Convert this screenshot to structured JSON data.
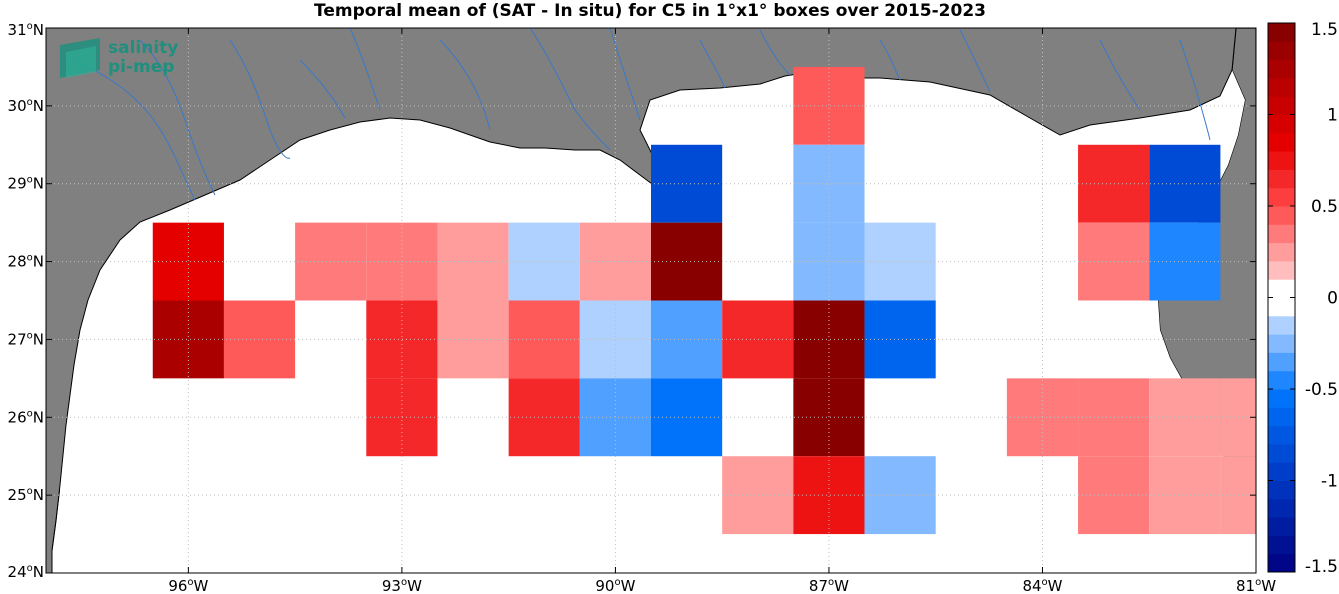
{
  "title": "Temporal mean of (SAT - In situ) for C5 in 1°x1° boxes over 2015-2023",
  "logo": {
    "line1": "salinity",
    "line2": "pi-mep"
  },
  "map": {
    "lon_range": [
      -98,
      -81
    ],
    "lat_range": [
      24,
      31
    ],
    "x_ticks": [
      {
        "lon": -96,
        "label": "96°W"
      },
      {
        "lon": -93,
        "label": "93°W"
      },
      {
        "lon": -90,
        "label": "90°W"
      },
      {
        "lon": -87,
        "label": "87°W"
      },
      {
        "lon": -84,
        "label": "84°W"
      },
      {
        "lon": -81,
        "label": "81°W"
      }
    ],
    "y_ticks": [
      {
        "lat": 24,
        "label": "24°N"
      },
      {
        "lat": 25,
        "label": "25°N"
      },
      {
        "lat": 26,
        "label": "26°N"
      },
      {
        "lat": 27,
        "label": "27°N"
      },
      {
        "lat": 28,
        "label": "28°N"
      },
      {
        "lat": 29,
        "label": "29°N"
      },
      {
        "lat": 30,
        "label": "30°N"
      },
      {
        "lat": 31,
        "label": "31°N"
      }
    ],
    "grid": "dotted",
    "land_color": "#808080",
    "ocean_color": "#ffffff",
    "river_color": "#3a78c9"
  },
  "chart_data": {
    "type": "heatmap",
    "variable": "SAT - In situ",
    "cell_size_deg": 1,
    "cells": [
      {
        "lon0": -96.5,
        "lat0": 27.5,
        "value": 0.9
      },
      {
        "lon0": -96.5,
        "lat0": 26.5,
        "value": 1.2
      },
      {
        "lon0": -95.5,
        "lat0": 26.5,
        "value": 0.45
      },
      {
        "lon0": -94.5,
        "lat0": 27.5,
        "value": 0.3
      },
      {
        "lon0": -93.5,
        "lat0": 27.5,
        "value": 0.3
      },
      {
        "lon0": -93.5,
        "lat0": 26.5,
        "value": 0.65
      },
      {
        "lon0": -93.5,
        "lat0": 25.5,
        "value": 0.65
      },
      {
        "lon0": -92.5,
        "lat0": 27.5,
        "value": 0.2
      },
      {
        "lon0": -92.5,
        "lat0": 26.5,
        "value": 0.2
      },
      {
        "lon0": -91.5,
        "lat0": 27.5,
        "value": -0.15
      },
      {
        "lon0": -91.5,
        "lat0": 26.5,
        "value": 0.45
      },
      {
        "lon0": -91.5,
        "lat0": 25.5,
        "value": 0.65
      },
      {
        "lon0": -90.5,
        "lat0": 27.5,
        "value": 0.2
      },
      {
        "lon0": -90.5,
        "lat0": 26.5,
        "value": -0.15
      },
      {
        "lon0": -90.5,
        "lat0": 25.5,
        "value": -0.4
      },
      {
        "lon0": -89.5,
        "lat0": 28.5,
        "value": -0.8
      },
      {
        "lon0": -89.5,
        "lat0": 27.5,
        "value": 1.45
      },
      {
        "lon0": -89.5,
        "lat0": 26.5,
        "value": -0.3
      },
      {
        "lon0": -89.5,
        "lat0": 25.5,
        "value": -0.55
      },
      {
        "lon0": -88.5,
        "lat0": 26.5,
        "value": 0.65
      },
      {
        "lon0": -88.5,
        "lat0": 24.5,
        "value": 0.2
      },
      {
        "lon0": -87.5,
        "lat0": 29.5,
        "value": 0.4
      },
      {
        "lon0": -87.5,
        "lat0": 28.5,
        "value": -0.25
      },
      {
        "lon0": -87.5,
        "lat0": 27.5,
        "value": -0.25
      },
      {
        "lon0": -87.5,
        "lat0": 26.5,
        "value": 1.45
      },
      {
        "lon0": -87.5,
        "lat0": 25.5,
        "value": 1.45
      },
      {
        "lon0": -87.5,
        "lat0": 24.5,
        "value": 0.75
      },
      {
        "lon0": -86.5,
        "lat0": 27.5,
        "value": -0.15
      },
      {
        "lon0": -86.5,
        "lat0": 26.5,
        "value": -0.7
      },
      {
        "lon0": -86.5,
        "lat0": 24.5,
        "value": -0.25
      },
      {
        "lon0": -84.5,
        "lat0": 25.5,
        "value": 0.3
      },
      {
        "lon0": -83.5,
        "lat0": 28.5,
        "value": 0.65
      },
      {
        "lon0": -83.5,
        "lat0": 27.5,
        "value": 0.3
      },
      {
        "lon0": -83.5,
        "lat0": 25.5,
        "value": 0.3
      },
      {
        "lon0": -83.5,
        "lat0": 24.5,
        "value": 0.35
      },
      {
        "lon0": -82.5,
        "lat0": 28.5,
        "value": -0.8
      },
      {
        "lon0": -82.5,
        "lat0": 27.5,
        "value": -0.5
      },
      {
        "lon0": -82.5,
        "lat0": 25.5,
        "value": 0.2
      },
      {
        "lon0": -82.5,
        "lat0": 24.5,
        "value": 0.2
      },
      {
        "lon0": -81.5,
        "lat0": 25.5,
        "value": 0.2
      },
      {
        "lon0": -81.5,
        "lat0": 24.5,
        "value": 0.2
      }
    ]
  },
  "colorbar": {
    "min": -1.5,
    "max": 1.5,
    "levels": 30,
    "ticks": [
      {
        "value": 1.5,
        "label": "1.5"
      },
      {
        "value": 1,
        "label": "1"
      },
      {
        "value": 0.5,
        "label": "0.5"
      },
      {
        "value": 0,
        "label": "0"
      },
      {
        "value": -0.5,
        "label": "-0.5"
      },
      {
        "value": -1,
        "label": "-1"
      },
      {
        "value": -1.5,
        "label": "-1.5"
      }
    ]
  }
}
